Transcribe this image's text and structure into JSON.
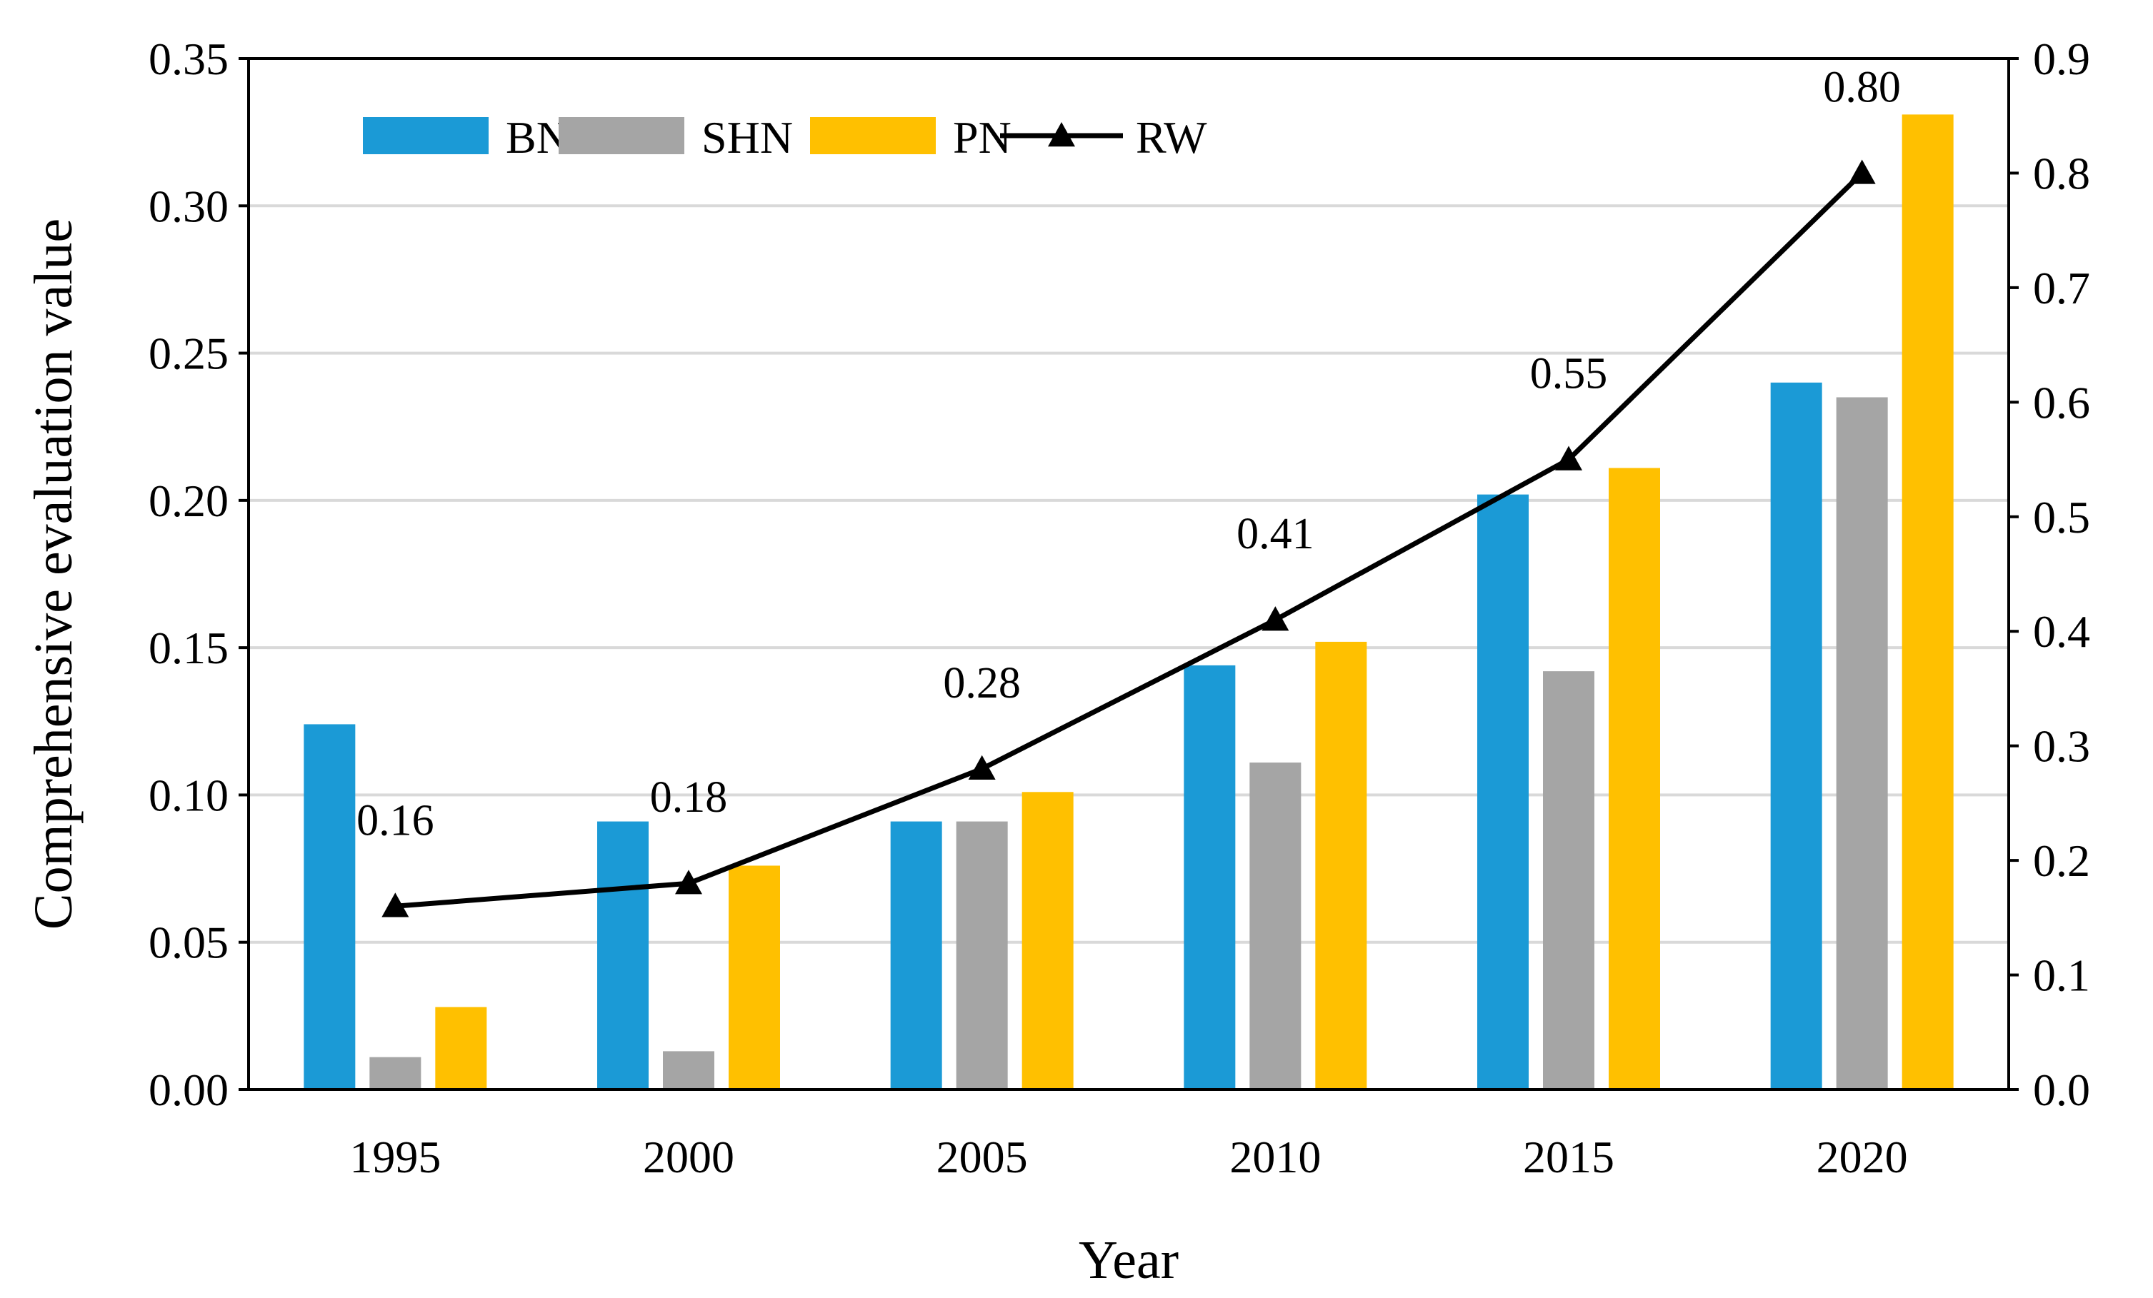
{
  "chart_data": {
    "type": "bar",
    "title": "",
    "xlabel": "Year",
    "ylabel": "Comprehensive evaluation value",
    "categories": [
      "1995",
      "2000",
      "2005",
      "2010",
      "2015",
      "2020"
    ],
    "ylim": [
      0,
      0.35
    ],
    "y_ticks": [
      "0.00",
      "0.05",
      "0.10",
      "0.15",
      "0.20",
      "0.25",
      "0.30",
      "0.35"
    ],
    "y2lim": [
      0,
      0.9
    ],
    "y2_ticks": [
      "0.0",
      "0.1",
      "0.2",
      "0.3",
      "0.4",
      "0.5",
      "0.6",
      "0.7",
      "0.8",
      "0.9"
    ],
    "grid": true,
    "legend_position": "top-left",
    "series": [
      {
        "name": "BN",
        "type": "bar",
        "axis": "left",
        "color": "#1b9ad6",
        "values": [
          0.124,
          0.091,
          0.091,
          0.144,
          0.202,
          0.24
        ]
      },
      {
        "name": "SHN",
        "type": "bar",
        "axis": "left",
        "color": "#a5a5a5",
        "values": [
          0.011,
          0.013,
          0.091,
          0.111,
          0.142,
          0.235
        ]
      },
      {
        "name": "PN",
        "type": "bar",
        "axis": "left",
        "color": "#ffc000",
        "values": [
          0.028,
          0.076,
          0.101,
          0.152,
          0.211,
          0.331
        ]
      },
      {
        "name": "RW",
        "type": "line",
        "axis": "right",
        "color": "#000000",
        "marker": "triangle",
        "values": [
          0.16,
          0.18,
          0.28,
          0.41,
          0.55,
          0.8
        ],
        "labels": [
          "0.16",
          "0.18",
          "0.28",
          "0.41",
          "0.55",
          "0.80"
        ]
      }
    ]
  }
}
